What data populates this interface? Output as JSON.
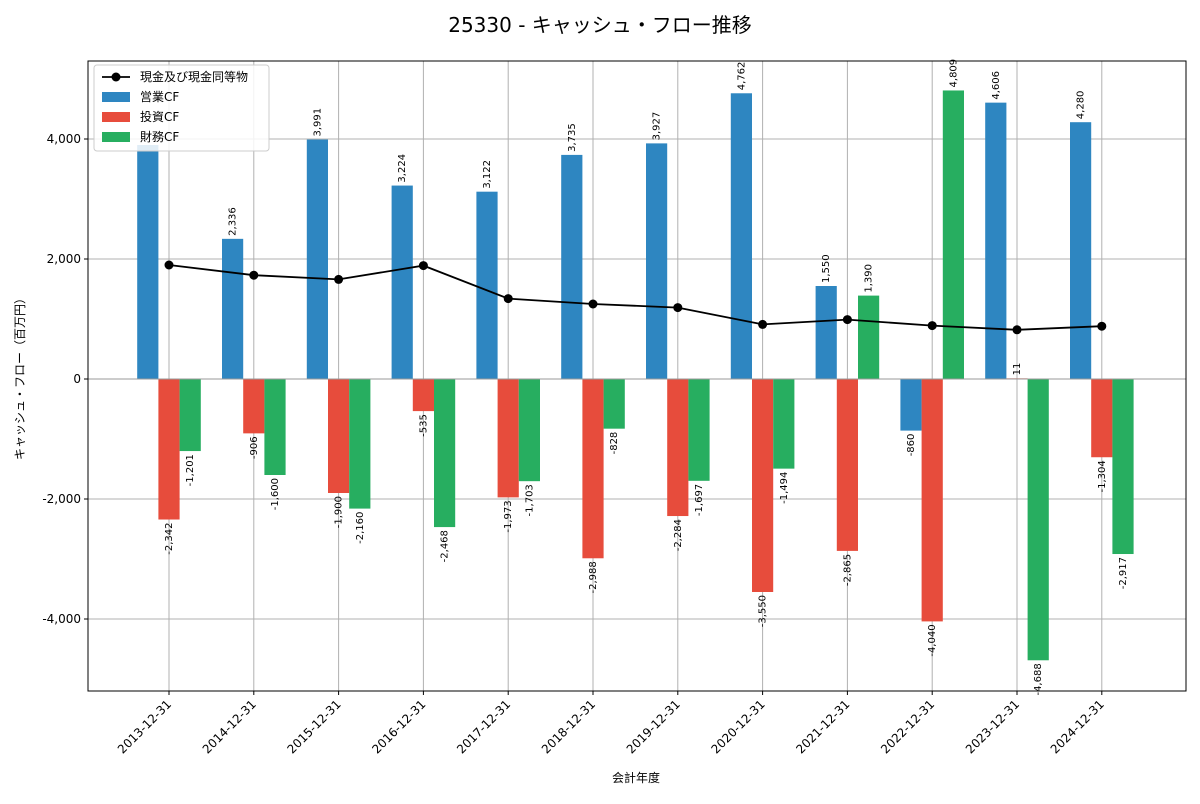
{
  "chart_data": {
    "type": "bar",
    "title": "25330 - キャッシュ・フロー推移",
    "xlabel": "会計年度",
    "ylabel": "キャッシュ・フロー（百万円）",
    "categories": [
      "2013-12-31",
      "2014-12-31",
      "2015-12-31",
      "2016-12-31",
      "2017-12-31",
      "2018-12-31",
      "2019-12-31",
      "2020-12-31",
      "2021-12-31",
      "2022-12-31",
      "2023-12-31",
      "2024-12-31"
    ],
    "ylim": [
      -5200,
      5300
    ],
    "yticks": [
      -4000,
      -2000,
      0,
      2000,
      4000
    ],
    "ytick_labels": [
      "-4,000",
      "-2,000",
      "0",
      "2,000",
      "4,000"
    ],
    "grid": true,
    "legend_position": "top-left",
    "series": [
      {
        "name": "営業CF",
        "kind": "bar",
        "color": "#2e86c1",
        "values": [
          3900,
          2336,
          3991,
          3224,
          3122,
          3735,
          3927,
          4762,
          1550,
          -860,
          4606,
          4280
        ],
        "labels": [
          "",
          "2,336",
          "3,991",
          "3,224",
          "3,122",
          "3,735",
          "3,927",
          "4,762",
          "1,550",
          "-860",
          "4,606",
          "4,280"
        ]
      },
      {
        "name": "投資CF",
        "kind": "bar",
        "color": "#e74c3c",
        "values": [
          -2342,
          -906,
          -1900,
          -535,
          -1973,
          -2988,
          -2284,
          -3550,
          -2865,
          -4040,
          11,
          -1304
        ],
        "labels": [
          "-2,342",
          "-906",
          "-1,900",
          "-535",
          "-1,973",
          "-2,988",
          "-2,284",
          "-3,550",
          "-2,865",
          "-4,040",
          "11",
          "-1,304"
        ]
      },
      {
        "name": "財務CF",
        "kind": "bar",
        "color": "#27ae60",
        "values": [
          -1201,
          -1600,
          -2160,
          -2468,
          -1703,
          -828,
          -1697,
          -1494,
          1390,
          4809,
          -4688,
          -2917
        ],
        "labels": [
          "-1,201",
          "-1,600",
          "-2,160",
          "-2,468",
          "-1,703",
          "-828",
          "-1,697",
          "-1,494",
          "1,390",
          "4,809",
          "-4,688",
          "-2,917"
        ]
      },
      {
        "name": "現金及び現金同等物",
        "kind": "line",
        "color": "#000000",
        "values": [
          1900,
          1730,
          1660,
          1890,
          1340,
          1250,
          1190,
          910,
          990,
          890,
          820,
          880
        ]
      }
    ]
  }
}
